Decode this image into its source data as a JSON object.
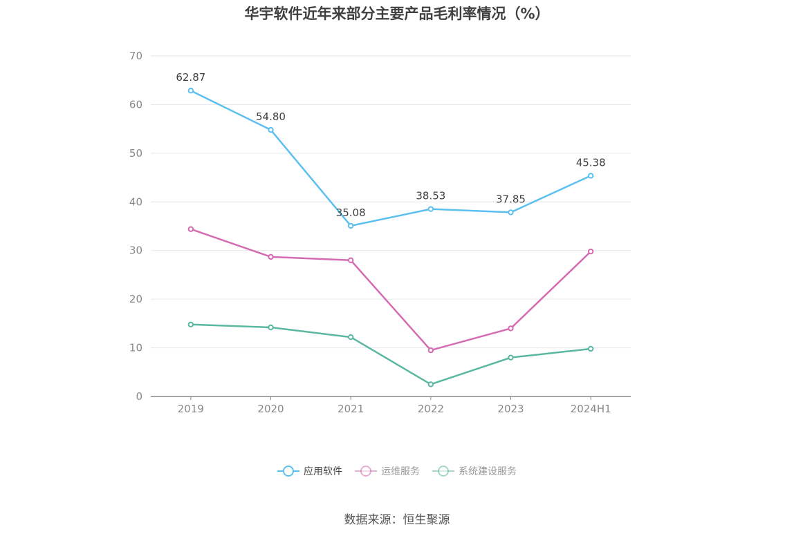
{
  "chart_data": {
    "type": "line",
    "title": "华宇软件近年来部分主要产品毛利率情况（%）",
    "categories": [
      "2019",
      "2020",
      "2021",
      "2022",
      "2023",
      "2024H1"
    ],
    "ylim": [
      0,
      70
    ],
    "yticks": [
      0,
      10,
      20,
      30,
      40,
      50,
      60,
      70
    ],
    "grid": true,
    "legend_position": "bottom",
    "series": [
      {
        "name": "应用软件",
        "color": "#5bc0f0",
        "values": [
          62.87,
          54.8,
          35.08,
          38.53,
          37.85,
          45.38
        ],
        "labels": [
          "62.87",
          "54.80",
          "35.08",
          "38.53",
          "37.85",
          "45.38"
        ]
      },
      {
        "name": "运维服务",
        "color": "#d46bb2",
        "values": [
          34.4,
          28.7,
          28.0,
          9.5,
          14.0,
          29.8
        ]
      },
      {
        "name": "系统建设服务",
        "color": "#5bb8a0",
        "values": [
          14.8,
          14.2,
          12.2,
          2.5,
          8.0,
          9.8
        ]
      }
    ]
  },
  "source": "数据来源：恒生聚源"
}
